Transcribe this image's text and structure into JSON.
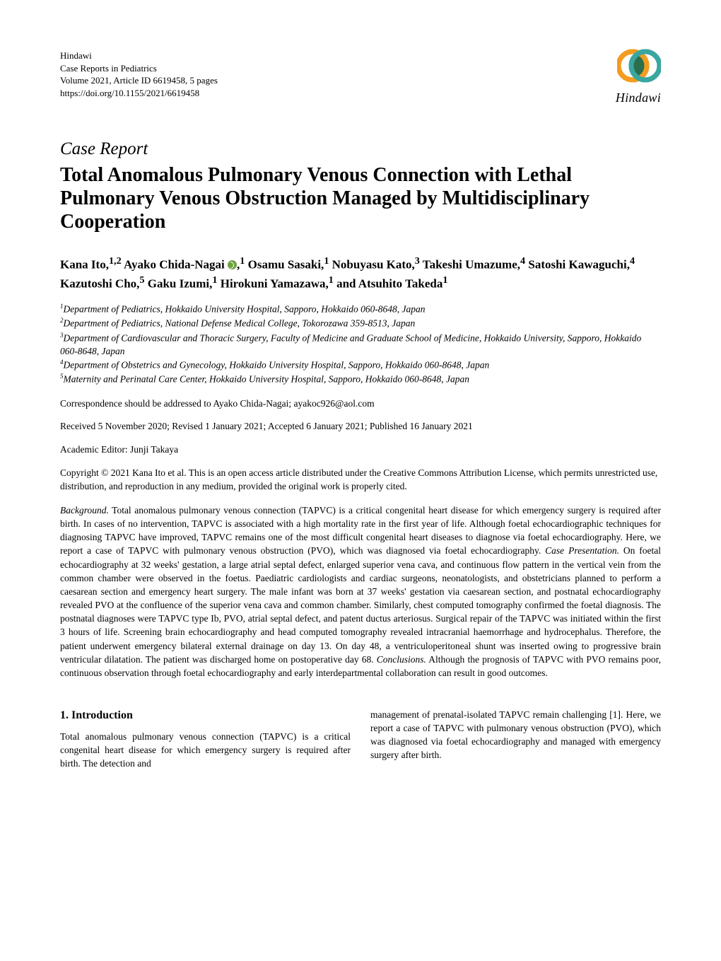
{
  "publisher": {
    "name": "Hindawi",
    "journal": "Case Reports in Pediatrics",
    "volume_line": "Volume 2021, Article ID 6619458, 5 pages",
    "doi": "https://doi.org/10.1155/2021/6619458",
    "logo_label": "Hindawi",
    "logo_colors": {
      "left": "#f39c1f",
      "right": "#3aa6a0",
      "overlap": "#2b6e4d"
    }
  },
  "article": {
    "type_label": "Case Report",
    "title": "Total Anomalous Pulmonary Venous Connection with Lethal Pulmonary Venous Obstruction Managed by Multidisciplinary Cooperation"
  },
  "authors_html": "Kana Ito,<sup>1,2</sup> Ayako Chida-Nagai <span class='orcid' data-name='orcid-icon' data-interactable='false'></span>,<sup>1</sup> Osamu Sasaki,<sup>1</sup> Nobuyasu Kato,<sup>3</sup> Takeshi Umazume,<sup>4</sup> Satoshi Kawaguchi,<sup>4</sup> Kazutoshi Cho,<sup>5</sup> Gaku Izumi,<sup>1</sup> Hirokuni Yamazawa,<sup>1</sup> and Atsuhito Takeda<sup>1</sup>",
  "affiliations": [
    {
      "num": "1",
      "text": "Department of Pediatrics, Hokkaido University Hospital, Sapporo, Hokkaido 060-8648, Japan"
    },
    {
      "num": "2",
      "text": "Department of Pediatrics, National Defense Medical College, Tokorozawa 359-8513, Japan"
    },
    {
      "num": "3",
      "text": "Department of Cardiovascular and Thoracic Surgery, Faculty of Medicine and Graduate School of Medicine, Hokkaido University, Sapporo, Hokkaido 060-8648, Japan"
    },
    {
      "num": "4",
      "text": "Department of Obstetrics and Gynecology, Hokkaido University Hospital, Sapporo, Hokkaido 060-8648, Japan"
    },
    {
      "num": "5",
      "text": "Maternity and Perinatal Care Center, Hokkaido University Hospital, Sapporo, Hokkaido 060-8648, Japan"
    }
  ],
  "correspondence": "Correspondence should be addressed to Ayako Chida-Nagai; ayakoc926@aol.com",
  "history": "Received 5 November 2020; Revised 1 January 2021; Accepted 6 January 2021; Published 16 January 2021",
  "editor": "Academic Editor: Junji Takaya",
  "copyright": "Copyright © 2021 Kana Ito et al. This is an open access article distributed under the Creative Commons Attribution License, which permits unrestricted use, distribution, and reproduction in any medium, provided the original work is properly cited.",
  "abstract": {
    "background_label": "Background.",
    "background": " Total anomalous pulmonary venous connection (TAPVC) is a critical congenital heart disease for which emergency surgery is required after birth. In cases of no intervention, TAPVC is associated with a high mortality rate in the first year of life. Although foetal echocardiographic techniques for diagnosing TAPVC have improved, TAPVC remains one of the most difficult congenital heart diseases to diagnose via foetal echocardiography. Here, we report a case of TAPVC with pulmonary venous obstruction (PVO), which was diagnosed via foetal echocardiography. ",
    "case_label": "Case Presentation.",
    "case": " On foetal echocardiography at 32 weeks' gestation, a large atrial septal defect, enlarged superior vena cava, and continuous flow pattern in the vertical vein from the common chamber were observed in the foetus. Paediatric cardiologists and cardiac surgeons, neonatologists, and obstetricians planned to perform a caesarean section and emergency heart surgery. The male infant was born at 37 weeks' gestation via caesarean section, and postnatal echocardiography revealed PVO at the confluence of the superior vena cava and common chamber. Similarly, chest computed tomography confirmed the foetal diagnosis. The postnatal diagnoses were TAPVC type Ib, PVO, atrial septal defect, and patent ductus arteriosus. Surgical repair of the TAPVC was initiated within the first 3 hours of life. Screening brain echocardiography and head computed tomography revealed intracranial haemorrhage and hydrocephalus. Therefore, the patient underwent emergency bilateral external drainage on day 13. On day 48, a ventriculoperitoneal shunt was inserted owing to progressive brain ventricular dilatation. The patient was discharged home on postoperative day 68. ",
    "conclusions_label": "Conclusions.",
    "conclusions": " Although the prognosis of TAPVC with PVO remains poor, continuous observation through foetal echocardiography and early interdepartmental collaboration can result in good outcomes."
  },
  "body": {
    "intro_heading": "1. Introduction",
    "intro_col1": "Total anomalous pulmonary venous connection (TAPVC) is a critical congenital heart disease for which emergency surgery is required after birth. The detection and",
    "intro_col2": "management of prenatal-isolated TAPVC remain challenging [1]. Here, we report a case of TAPVC with pulmonary venous obstruction (PVO), which was diagnosed via foetal echocardiography and managed with emergency surgery after birth."
  }
}
